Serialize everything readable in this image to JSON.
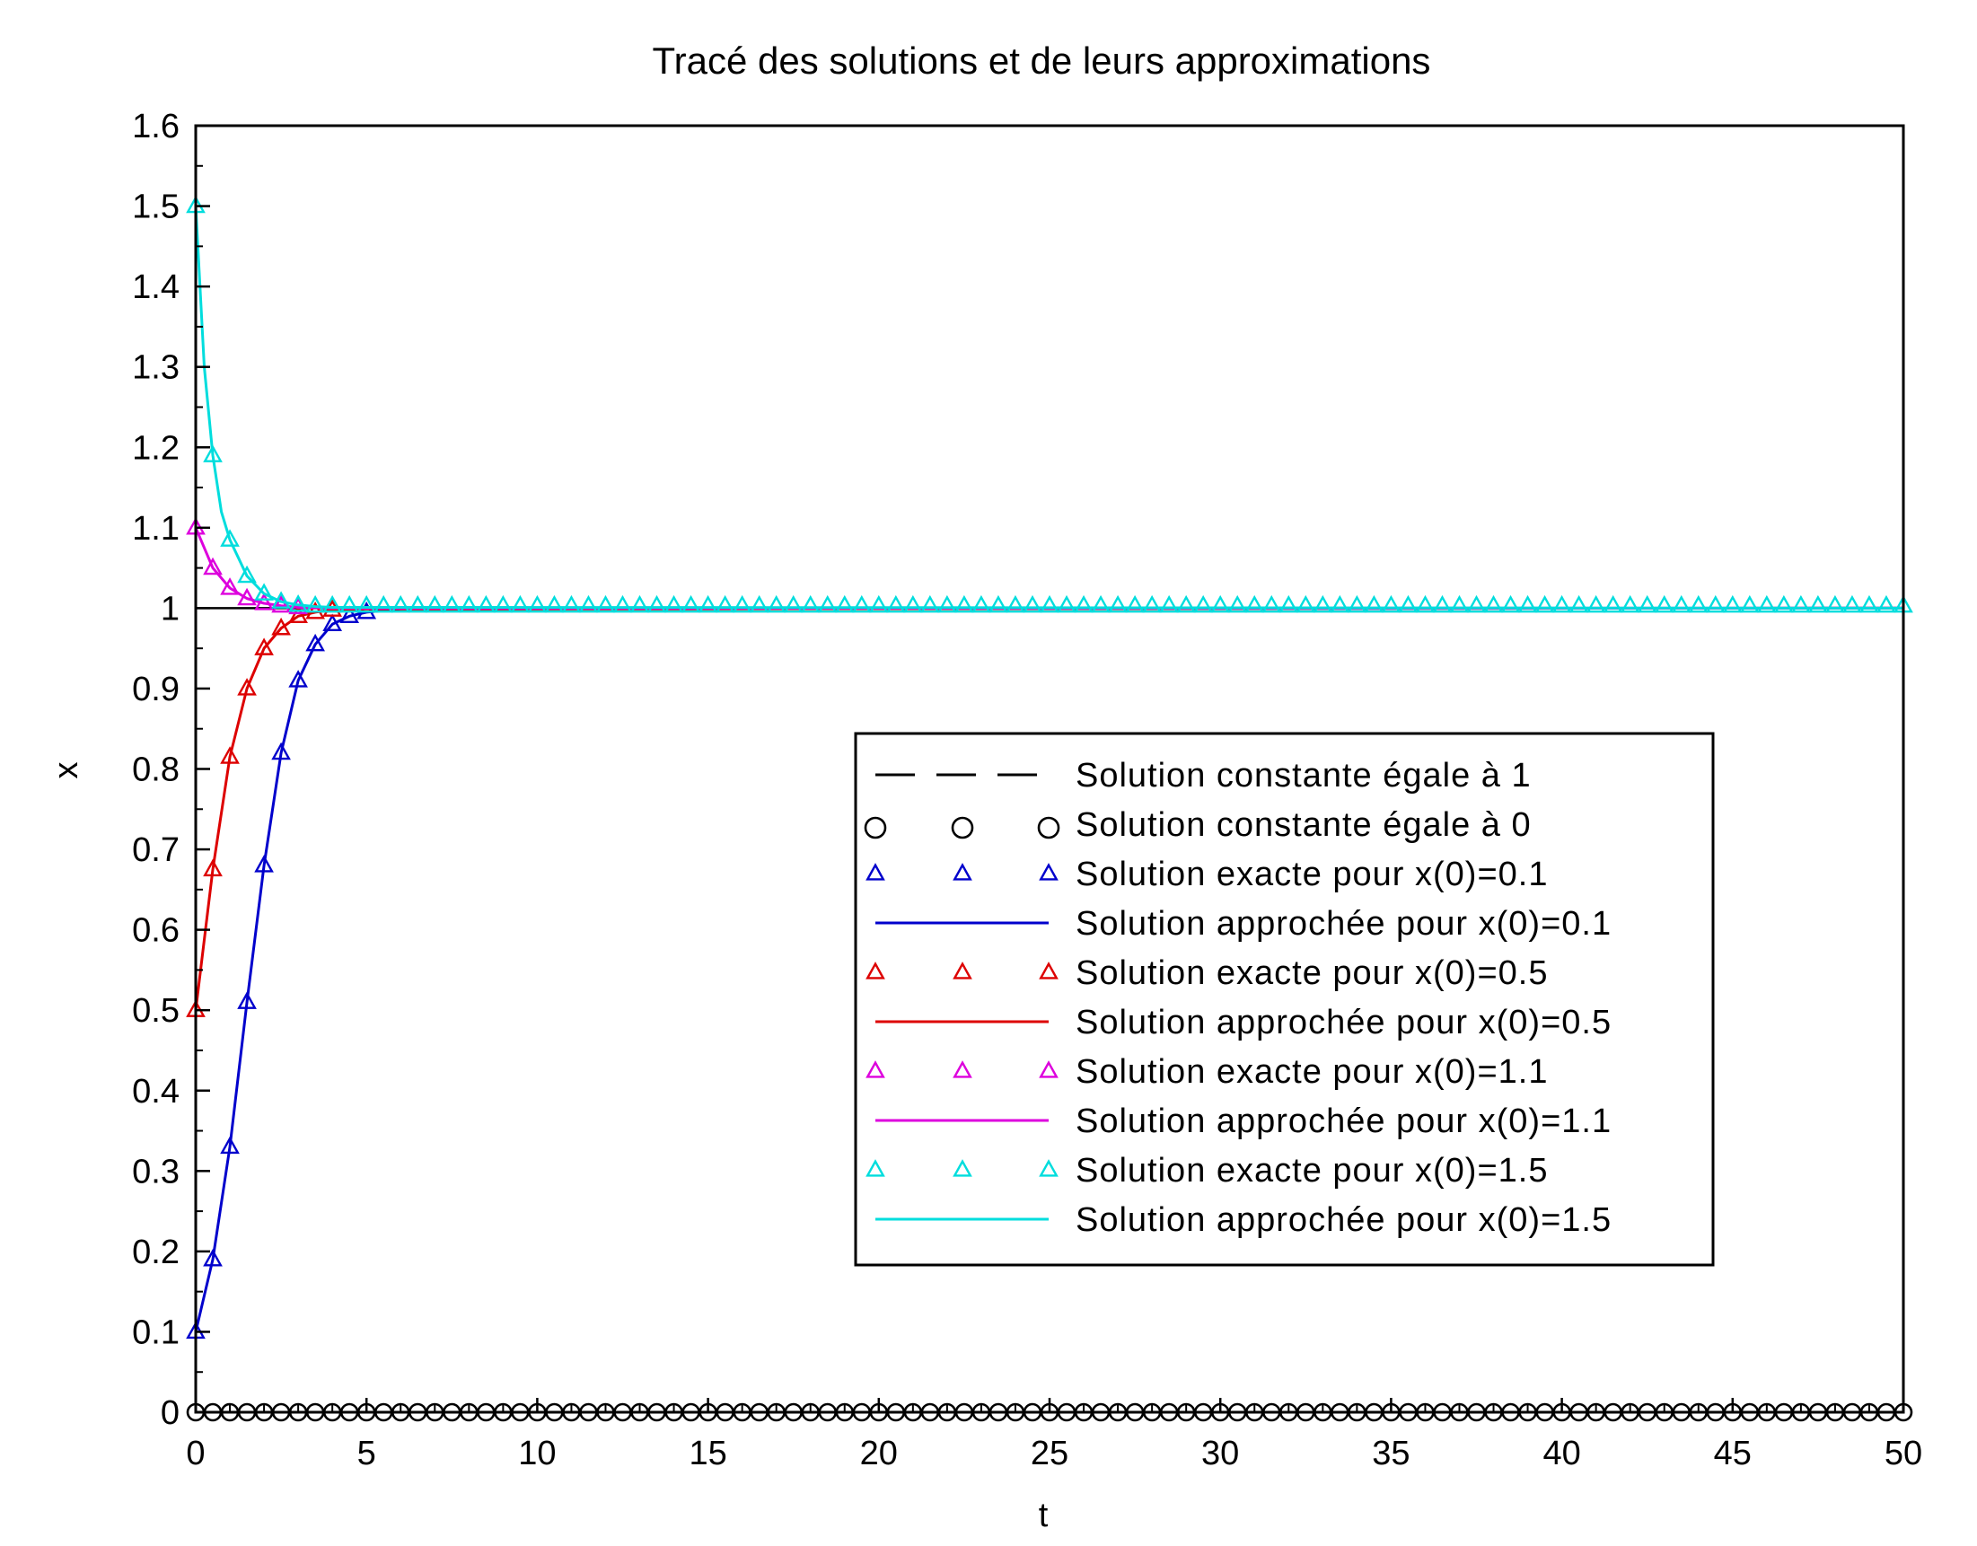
{
  "chart_data": {
    "type": "line",
    "title": "Tracé des solutions et de leurs approximations",
    "xlabel": "t",
    "ylabel": "x",
    "xlim": [
      0,
      50
    ],
    "ylim": [
      0,
      1.6
    ],
    "x_ticks": [
      0,
      5,
      10,
      15,
      20,
      25,
      30,
      35,
      40,
      45,
      50
    ],
    "x_tick_labels": [
      "0",
      "5",
      "10",
      "15",
      "20",
      "25",
      "30",
      "35",
      "40",
      "45",
      "50"
    ],
    "y_ticks": [
      0,
      0.1,
      0.2,
      0.3,
      0.4,
      0.5,
      0.6,
      0.7,
      0.8,
      0.9,
      1,
      1.1,
      1.2,
      1.3,
      1.4,
      1.5,
      1.6
    ],
    "y_tick_labels": [
      "0",
      "0.1",
      "0.2",
      "0.3",
      "0.4",
      "0.5",
      "0.6",
      "0.7",
      "0.8",
      "0.9",
      "1",
      "1.1",
      "1.2",
      "1.3",
      "1.4",
      "1.5",
      "1.6"
    ],
    "grid": false,
    "legend_position": "center-right",
    "x_samples": [
      0,
      0.5,
      1,
      1.5,
      2,
      2.5,
      3,
      3.5,
      4,
      4.5,
      5
    ],
    "x_samples_note": "",
    "series": [
      {
        "name": "Solution constante égale à 1",
        "style": "dashed-line",
        "color": "#000000",
        "x": [
          0,
          50
        ],
        "y": [
          1,
          1
        ]
      },
      {
        "name": "Solution constante égale à 0",
        "style": "circle-markers",
        "color": "#000000",
        "marker_step": 0.5,
        "x_range": [
          0,
          50
        ],
        "y_const": 0
      },
      {
        "name": "Solution exacte pour x(0)=0.1",
        "style": "triangle-markers",
        "color": "#0000cc",
        "x": [
          0,
          0.5,
          1,
          1.5,
          2,
          2.5,
          3,
          3.5,
          4,
          4.5,
          5
        ],
        "y": [
          0.1,
          0.19,
          0.33,
          0.51,
          0.68,
          0.82,
          0.91,
          0.955,
          0.98,
          0.99,
          0.995
        ]
      },
      {
        "name": "Solution approchée pour x(0)=0.1",
        "style": "solid-line",
        "color": "#0000cc",
        "x": [
          0,
          0.5,
          1,
          1.5,
          2,
          2.5,
          3,
          3.5,
          4,
          4.5,
          5,
          6,
          50
        ],
        "y": [
          0.1,
          0.19,
          0.33,
          0.51,
          0.68,
          0.82,
          0.91,
          0.955,
          0.98,
          0.99,
          0.995,
          0.999,
          1
        ]
      },
      {
        "name": "Solution exacte pour x(0)=0.5",
        "style": "triangle-markers",
        "color": "#dd0000",
        "x": [
          0,
          0.5,
          1,
          1.5,
          2,
          2.5,
          3,
          3.5,
          4
        ],
        "y": [
          0.5,
          0.675,
          0.815,
          0.9,
          0.95,
          0.975,
          0.99,
          0.995,
          0.998
        ]
      },
      {
        "name": "Solution approchée pour x(0)=0.5",
        "style": "solid-line",
        "color": "#dd0000",
        "x": [
          0,
          0.5,
          1,
          1.5,
          2,
          2.5,
          3,
          3.5,
          4,
          5,
          50
        ],
        "y": [
          0.5,
          0.675,
          0.815,
          0.9,
          0.95,
          0.975,
          0.99,
          0.995,
          0.998,
          0.999,
          1
        ]
      },
      {
        "name": "Solution exacte pour x(0)=1.1",
        "style": "triangle-markers",
        "color": "#dd00dd",
        "x": [
          0,
          0.5,
          1,
          1.5,
          2,
          2.5,
          3
        ],
        "y": [
          1.1,
          1.05,
          1.025,
          1.012,
          1.006,
          1.003,
          1.001
        ]
      },
      {
        "name": "Solution approchée pour x(0)=1.1",
        "style": "solid-line",
        "color": "#dd00dd",
        "x": [
          0,
          0.5,
          1,
          1.5,
          2,
          2.5,
          3,
          4,
          50
        ],
        "y": [
          1.1,
          1.05,
          1.025,
          1.012,
          1.006,
          1.003,
          1.001,
          1,
          1
        ]
      },
      {
        "name": "Solution exacte pour x(0)=1.5",
        "style": "triangle-markers",
        "color": "#00dddd",
        "marker_step": 0.5,
        "x": [
          0,
          0.5,
          1,
          1.5,
          2,
          2.5,
          3
        ],
        "y": [
          1.5,
          1.19,
          1.085,
          1.04,
          1.018,
          1.008,
          1.004
        ],
        "tail_y": 1.003
      },
      {
        "name": "Solution approchée pour x(0)=1.5",
        "style": "solid-line",
        "color": "#00dddd",
        "x": [
          0,
          0.25,
          0.5,
          0.75,
          1,
          1.5,
          2,
          2.5,
          3,
          3.5,
          4,
          50
        ],
        "y": [
          1.5,
          1.3,
          1.19,
          1.12,
          1.085,
          1.04,
          1.018,
          1.008,
          1.004,
          1.002,
          1.001,
          1
        ]
      }
    ]
  }
}
